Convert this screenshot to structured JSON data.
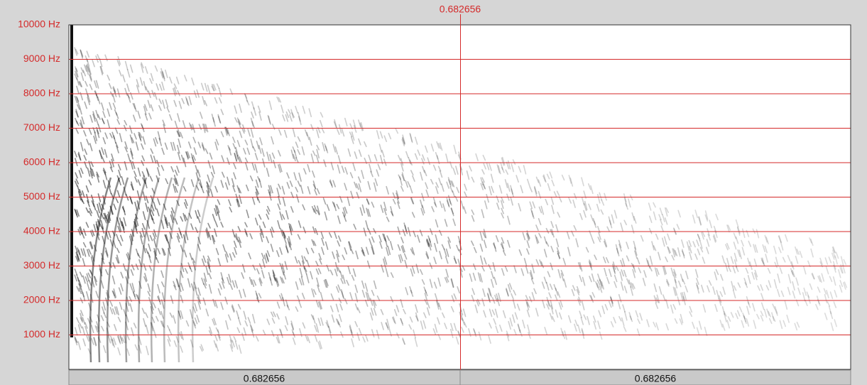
{
  "chart_data": {
    "type": "spectrogram",
    "ylim": [
      0,
      10000
    ],
    "yticks": [
      {
        "value": 1000,
        "label": "1000 Hz"
      },
      {
        "value": 2000,
        "label": "2000 Hz"
      },
      {
        "value": 3000,
        "label": "3000 Hz"
      },
      {
        "value": 4000,
        "label": "4000 Hz"
      },
      {
        "value": 5000,
        "label": "5000 Hz"
      },
      {
        "value": 6000,
        "label": "6000 Hz"
      },
      {
        "value": 7000,
        "label": "7000 Hz"
      },
      {
        "value": 8000,
        "label": "8000 Hz"
      },
      {
        "value": 9000,
        "label": "9000 Hz"
      },
      {
        "value": 10000,
        "label": "10000 Hz"
      }
    ],
    "grid": true,
    "grid_color": "#d42a2a",
    "cursor_label": "0.682656",
    "segment_labels": [
      "0.682656",
      "0.682656"
    ]
  }
}
